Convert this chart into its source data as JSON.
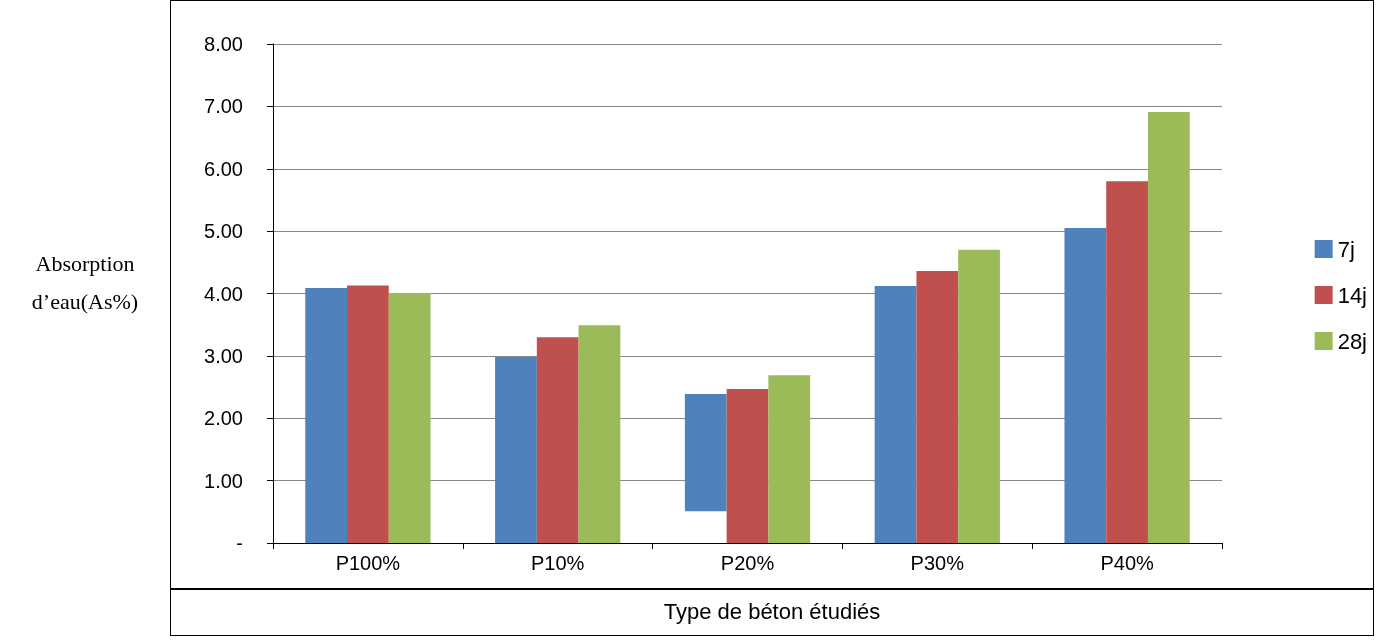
{
  "chart_data": {
    "type": "bar",
    "xlabel": "Type de béton étudiés",
    "ylabel": "Absorption d’eau(As%)",
    "categories": [
      "P100%",
      "P10%",
      "P20%",
      "P30%",
      "P40%"
    ],
    "series": [
      {
        "name": "7j",
        "color": "#4f81bd",
        "values": [
          4.09,
          2.98,
          1.88,
          4.12,
          5.05
        ],
        "base": [
          0,
          0,
          0.51,
          0,
          0
        ]
      },
      {
        "name": "14j",
        "color": "#c0504d",
        "values": [
          4.13,
          3.3,
          2.47,
          4.36,
          5.8
        ]
      },
      {
        "name": "28j",
        "color": "#9bbb59",
        "values": [
          4.01,
          3.49,
          2.69,
          4.7,
          6.91
        ]
      }
    ],
    "ylim": [
      0,
      8
    ],
    "yticks": [
      {
        "value": 0,
        "label": "-"
      },
      {
        "value": 1,
        "label": "1.00"
      },
      {
        "value": 2,
        "label": "2.00"
      },
      {
        "value": 3,
        "label": "3.00"
      },
      {
        "value": 4,
        "label": "4.00"
      },
      {
        "value": 5,
        "label": "5.00"
      },
      {
        "value": 6,
        "label": "6.00"
      },
      {
        "value": 7,
        "label": "7.00"
      },
      {
        "value": 8,
        "label": "8.00"
      }
    ],
    "grid": "y",
    "legend": "right"
  }
}
